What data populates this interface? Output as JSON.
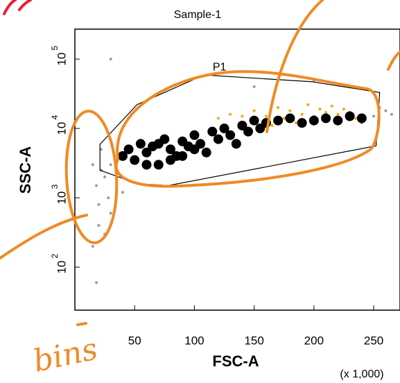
{
  "chart_data": {
    "type": "scatter",
    "title": "Sample-1",
    "x_label": "FSC-A",
    "y_label": "SSC-A",
    "x_unit_note": "(x 1,000)",
    "annotation": "bins",
    "xlim": [
      0,
      272
    ],
    "ylim": [
      24,
      270000
    ],
    "log_y": true,
    "xticks": [
      50,
      100,
      150,
      200,
      250
    ],
    "yticks": [
      {
        "value": 100,
        "label": "10",
        "exponent": "2"
      },
      {
        "value": 1000,
        "label": "10",
        "exponent": "3"
      },
      {
        "value": 10000,
        "label": "10",
        "exponent": "4"
      },
      {
        "value": 100000,
        "label": "10",
        "exponent": "5"
      }
    ],
    "series": [
      {
        "color": "#9a9a9a",
        "x": [
          15,
          18,
          20,
          22,
          25,
          28,
          30,
          20,
          15,
          25,
          18,
          30,
          35,
          240,
          250,
          255,
          260,
          265,
          200,
          150,
          30,
          40,
          22
        ],
        "values": [
          3000,
          1500,
          800,
          5000,
          2000,
          1000,
          600,
          400,
          200,
          300,
          60,
          3000,
          2500,
          12000,
          15000,
          20000,
          18000,
          16000,
          50000,
          40000,
          100000,
          1200,
          2500
        ]
      },
      {
        "color": "#f5a800",
        "x": [
          120,
          130,
          140,
          150,
          160,
          170,
          175,
          180,
          190,
          195,
          200,
          205,
          210,
          215,
          220,
          225,
          230,
          235,
          185,
          165
        ],
        "values": [
          14000,
          16000,
          15000,
          18000,
          15000,
          20000,
          14000,
          18000,
          16000,
          22000,
          15000,
          19000,
          17000,
          21000,
          16000,
          19000,
          17000,
          14000,
          12000,
          11000
        ]
      },
      {
        "color": "#000000",
        "x": [
          40,
          45,
          50,
          55,
          60,
          65,
          70,
          75,
          80,
          85,
          90,
          95,
          100,
          105,
          110,
          115,
          120,
          125,
          130,
          135,
          140,
          145,
          150,
          155,
          160,
          60,
          70,
          80,
          90,
          100,
          170,
          180,
          190,
          200,
          210,
          220,
          230,
          240
        ],
        "values": [
          4000,
          5000,
          3500,
          6000,
          4500,
          5500,
          3000,
          7000,
          5000,
          4000,
          6500,
          5500,
          8000,
          6000,
          4500,
          9000,
          7000,
          10000,
          8000,
          6000,
          11000,
          9000,
          13000,
          10000,
          12000,
          3000,
          6000,
          3500,
          4000,
          5000,
          13000,
          14000,
          12000,
          13000,
          14000,
          13000,
          15000,
          14000
        ]
      }
    ],
    "gate": {
      "label": "P1",
      "label_x": 121,
      "label_y": 76000,
      "x": [
        21,
        21,
        52,
        78,
        252,
        255,
        199,
        108,
        52
      ],
      "y": [
        5900,
        2500,
        1600,
        1500,
        5600,
        33000,
        47000,
        59000,
        22000
      ]
    }
  }
}
